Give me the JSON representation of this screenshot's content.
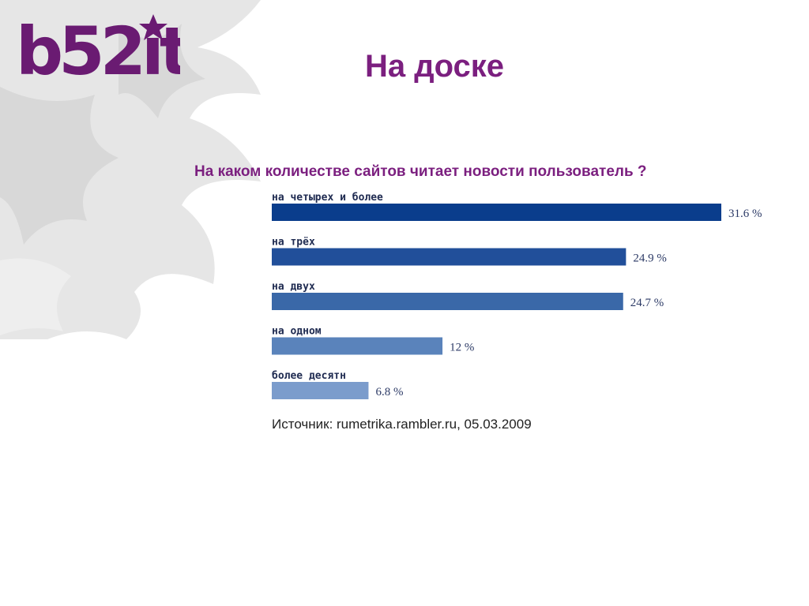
{
  "slide": {
    "logo_text": "b52it",
    "title": "На доске",
    "source": "Источник: rumetrika.rambler.ru, 05.03.2009"
  },
  "colors": {
    "title": "#7b1f7f",
    "logo": "#6a1b72"
  },
  "chart_data": {
    "type": "bar",
    "orientation": "horizontal",
    "title": "На каком количестве сайтов читает новости пользователь ?",
    "categories": [
      "на четырех и более",
      "на трёх",
      "на двух",
      "на одном",
      "более десятн"
    ],
    "values": [
      31.6,
      24.9,
      24.7,
      12,
      6.8
    ],
    "value_labels": [
      "31.6 %",
      "24.9 %",
      "24.7 %",
      "12 %",
      "6.8 %"
    ],
    "bar_colors": [
      "#0a3d8c",
      "#214f9a",
      "#3a68a8",
      "#5a83bb",
      "#7b9ccc"
    ],
    "xlabel": "",
    "ylabel": "",
    "grid": false
  }
}
